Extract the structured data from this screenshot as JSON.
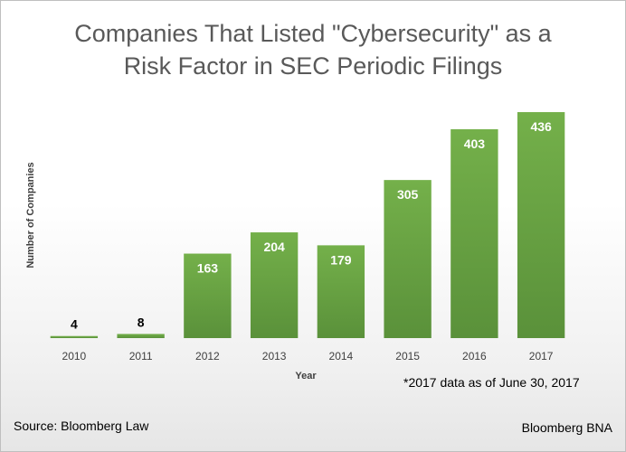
{
  "chart_data": {
    "type": "bar",
    "title_line1": "Companies That Listed \"Cybersecurity\" as a",
    "title_line2": "Risk Factor in SEC Periodic Filings",
    "xlabel": "Year",
    "ylabel": "Number of Companies",
    "categories": [
      "2010",
      "2011",
      "2012",
      "2013",
      "2014",
      "2015",
      "2016",
      "2017"
    ],
    "values": [
      4,
      8,
      163,
      204,
      179,
      305,
      403,
      436
    ],
    "ylim": [
      0,
      450
    ],
    "grid": false,
    "bar_color": "#70ad47"
  },
  "footnote": "*2017 data as of June 30, 2017",
  "source": "Source: Bloomberg Law",
  "brand": "Bloomberg BNA"
}
